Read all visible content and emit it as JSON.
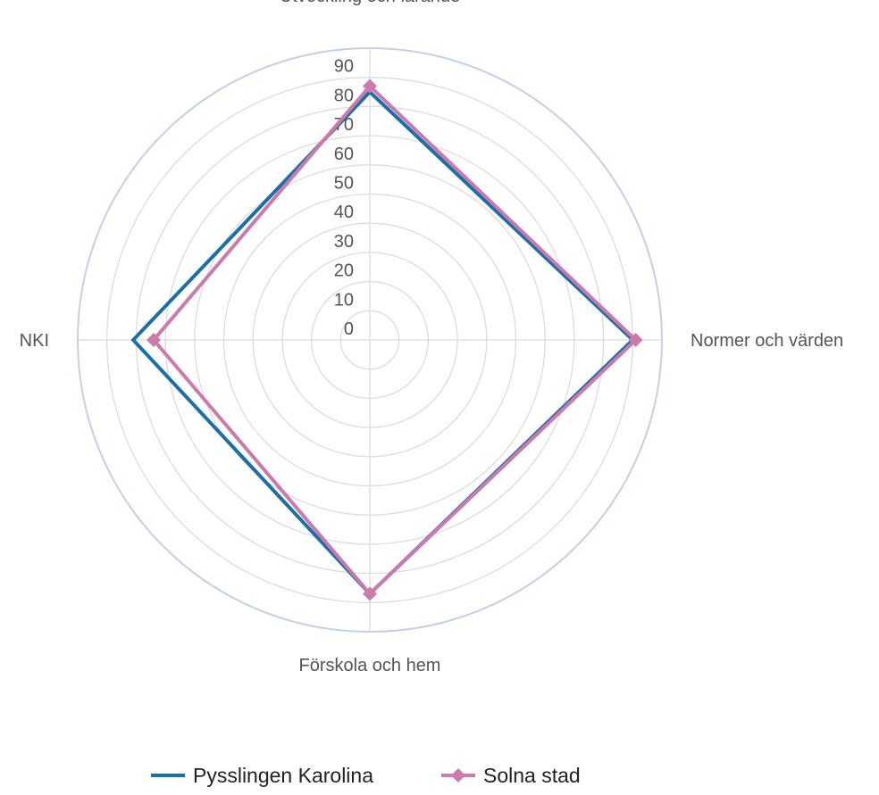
{
  "chart_data": {
    "type": "radar",
    "categories": [
      "Utveckling och lärande",
      "Normer och värden",
      "Förskola och hem",
      "NKI"
    ],
    "r_ticks": [
      0,
      10,
      20,
      30,
      40,
      50,
      60,
      70,
      80,
      90
    ],
    "r_range": [
      0,
      100
    ],
    "grid": true,
    "legend_position": "bottom",
    "series": [
      {
        "name": "Pysslingen Karolina",
        "color": "#1a6fa8",
        "marker": "none",
        "values": [
          85,
          90,
          87,
          81
        ]
      },
      {
        "name": "Solna stad",
        "color": "#cc7aaa",
        "marker": "diamond",
        "values": [
          87,
          91,
          87,
          74
        ]
      }
    ]
  }
}
